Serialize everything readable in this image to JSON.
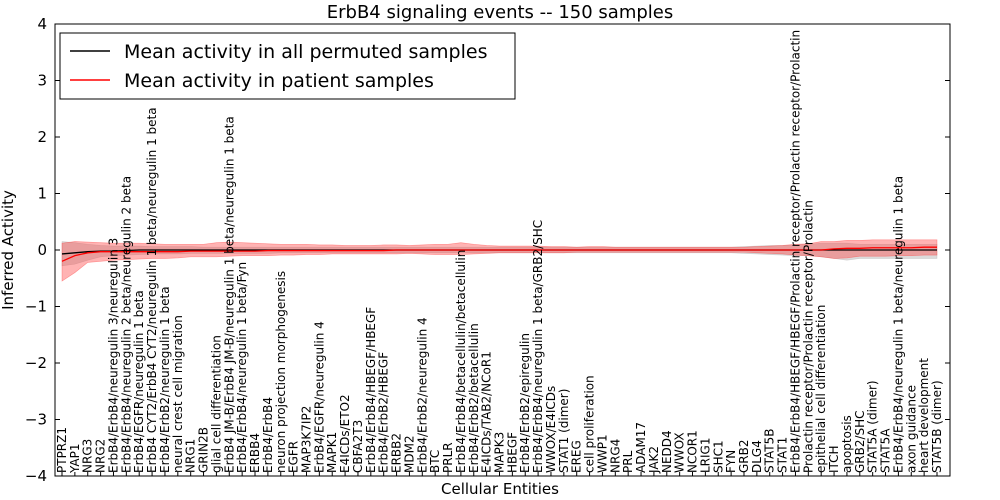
{
  "chart_data": {
    "type": "line",
    "title": "ErbB4 signaling events -- 150 samples",
    "xlabel": "Cellular Entities",
    "ylabel": "Inferred Activity",
    "ylim": [
      -4,
      4
    ],
    "yticks": [
      -4,
      -3,
      -2,
      -1,
      0,
      1,
      2,
      3,
      4
    ],
    "ytick_labels": [
      "−4",
      "−3",
      "−2",
      "−1",
      "0",
      "1",
      "2",
      "3",
      "4"
    ],
    "grid": false,
    "legend_position": "top-left",
    "categories": [
      "PTPRZ1",
      "YAP1",
      "NRG3",
      "NRG2",
      "ErbB4/ErbB4/neuregulin 3/neuregulin 3",
      "ErbB4/ErbB4/neuregulin 2 beta/neuregulin 2 beta",
      "ErbB4/EGFR/neuregulin 1 beta",
      "ErbB4 CYT2/ErbB4 CYT2/neuregulin 1 beta/neuregulin 1 beta",
      "ErbB4/ErbB2/neuregulin 1 beta",
      "neural crest cell migration",
      "NRG1",
      "GRIN2B",
      "glial cell differentiation",
      "ErbB4 JM-B/ErbB4 JM-B/neuregulin 1 beta/neuregulin 1 beta",
      "ErbB4/ErbB4/neuregulin 1 beta/Fyn",
      "ERBB4",
      "ErbB4/ErbB4",
      "neuron projection morphogenesis",
      "EGFR",
      "MAP3K7IP2",
      "ErbB4/EGFR/neuregulin 4",
      "MAPK1",
      "E4ICDs/ETO2",
      "CBFA2T3",
      "ErbB4/ErbB4/HBEGF/HBEGF",
      "ErbB4/ErbB2/HBEGF",
      "ERBB2",
      "MDM2",
      "ErbB4/ErbB2/neuregulin 4",
      "BTC",
      "PRLR",
      "ErbB4/ErbB4/betacellulin/betacellulin",
      "ErbB4/ErbB2/betacellulin",
      "E4ICDs/TAB2/NCoR1",
      "MAPK3",
      "HBEGF",
      "ErbB4/ErbB2/epiregulin",
      "ErbB4/ErbB4/neuregulin 1 beta/GRB2/SHC",
      "WWOX/E4ICDs",
      "STAT1 (dimer)",
      "EREG",
      "cell proliferation",
      "WWP1",
      "NRG4",
      "PRL",
      "ADAM17",
      "JAK2",
      "NEDD4",
      "WWOX",
      "NCOR1",
      "LRIG1",
      "SHC1",
      "FYN",
      "GRB2",
      "DLG4",
      "STAT5B",
      "STAT1",
      "ErbB4/ErbB4/HBEGF/HBEGF/Prolactin receptor/Prolactin receptor/Prolactin",
      "Prolactin receptor/Prolactin receptor/Prolactin",
      "epithelial cell differentiation",
      "ITCH",
      "apoptosis",
      "GRB2/SHC",
      "STAT5A (dimer)",
      "STAT5A",
      "ErbB4/ErbB4/neuregulin 1 beta/neuregulin 1 beta",
      "axon guidance",
      "heart development",
      "STAT5B (dimer)"
    ],
    "series": [
      {
        "name": "Mean activity in all permuted samples",
        "color": "#000000",
        "values": [
          -0.07,
          -0.05,
          -0.03,
          -0.02,
          -0.02,
          -0.01,
          0,
          0,
          0,
          0,
          0,
          0,
          0,
          0,
          0,
          0,
          0,
          0,
          0,
          0,
          0,
          0,
          0,
          0,
          0,
          0,
          0,
          0,
          0,
          0,
          0,
          0,
          0,
          0,
          0,
          0,
          0,
          0,
          0,
          0,
          0,
          0,
          0,
          0,
          0,
          0,
          0,
          0,
          0,
          0,
          0,
          0,
          0,
          0,
          0,
          0,
          0,
          0,
          0,
          0,
          0,
          0,
          0,
          0,
          0,
          0,
          0,
          0,
          0
        ],
        "band_upper": [
          0.15,
          0.13,
          0.1,
          0.08,
          0.07,
          0.07,
          0.07,
          0.06,
          0.06,
          0.06,
          0.06,
          0.05,
          0.05,
          0.05,
          0.05,
          0.05,
          0.05,
          0.05,
          0.05,
          0.05,
          0.05,
          0.05,
          0.05,
          0.05,
          0.05,
          0.05,
          0.05,
          0.05,
          0.05,
          0.05,
          0.05,
          0.05,
          0.05,
          0.05,
          0.05,
          0.05,
          0.05,
          0.05,
          0.05,
          0.05,
          0.05,
          0.05,
          0.05,
          0.05,
          0.05,
          0.05,
          0.05,
          0.05,
          0.05,
          0.05,
          0.05,
          0.05,
          0.05,
          0.06,
          0.07,
          0.08,
          0.08,
          0.09,
          0.1,
          0.12,
          0.12,
          0.12,
          0.1,
          0.1,
          0.1,
          0.1,
          0.1,
          0.1,
          0.1
        ],
        "band_lower": [
          -0.28,
          -0.25,
          -0.18,
          -0.12,
          -0.1,
          -0.09,
          -0.08,
          -0.07,
          -0.07,
          -0.07,
          -0.06,
          -0.06,
          -0.06,
          -0.06,
          -0.06,
          -0.06,
          -0.06,
          -0.05,
          -0.05,
          -0.05,
          -0.05,
          -0.05,
          -0.05,
          -0.05,
          -0.05,
          -0.05,
          -0.05,
          -0.05,
          -0.05,
          -0.05,
          -0.05,
          -0.05,
          -0.05,
          -0.05,
          -0.05,
          -0.05,
          -0.05,
          -0.05,
          -0.05,
          -0.05,
          -0.05,
          -0.05,
          -0.05,
          -0.05,
          -0.05,
          -0.05,
          -0.05,
          -0.05,
          -0.05,
          -0.05,
          -0.05,
          -0.05,
          -0.05,
          -0.06,
          -0.07,
          -0.08,
          -0.09,
          -0.1,
          -0.1,
          -0.12,
          -0.15,
          -0.18,
          -0.15,
          -0.15,
          -0.15,
          -0.15,
          -0.15,
          -0.15,
          -0.15
        ]
      },
      {
        "name": "Mean activity in patient samples",
        "color": "#ff0000",
        "values": [
          -0.2,
          -0.1,
          -0.05,
          -0.03,
          -0.03,
          -0.03,
          -0.03,
          -0.03,
          -0.03,
          -0.03,
          -0.02,
          -0.02,
          -0.02,
          -0.02,
          -0.02,
          -0.02,
          -0.01,
          -0.01,
          -0.01,
          -0.01,
          -0.01,
          -0.01,
          -0.01,
          -0.01,
          -0.01,
          -0.01,
          0,
          0,
          0,
          0,
          0,
          0,
          0,
          0,
          0,
          0,
          0,
          0,
          0,
          0,
          0,
          0,
          0,
          0,
          0,
          0,
          0,
          0,
          0,
          0,
          0,
          0,
          0,
          0,
          0,
          0,
          0,
          0,
          0,
          0,
          0.02,
          0.03,
          0.03,
          0.04,
          0.04,
          0.04,
          0.04,
          0.05,
          0.05
        ],
        "band_upper": [
          0.12,
          0.15,
          0.14,
          0.13,
          0.12,
          0.12,
          0.12,
          0.11,
          0.1,
          0.1,
          0.1,
          0.1,
          0.13,
          0.14,
          0.13,
          0.12,
          0.11,
          0.1,
          0.1,
          0.1,
          0.09,
          0.09,
          0.08,
          0.08,
          0.08,
          0.09,
          0.09,
          0.08,
          0.09,
          0.1,
          0.1,
          0.13,
          0.1,
          0.08,
          0.07,
          0.07,
          0.07,
          0.07,
          0.06,
          0.06,
          0.05,
          0.06,
          0.06,
          0.05,
          0.05,
          0.05,
          0.05,
          0.05,
          0.05,
          0.05,
          0.05,
          0.05,
          0.05,
          0.05,
          0.06,
          0.07,
          0.08,
          0.1,
          0.11,
          0.15,
          0.15,
          0.17,
          0.17,
          0.18,
          0.18,
          0.18,
          0.18,
          0.18,
          0.18
        ],
        "band_lower": [
          -0.55,
          -0.4,
          -0.22,
          -0.2,
          -0.18,
          -0.17,
          -0.16,
          -0.15,
          -0.15,
          -0.14,
          -0.12,
          -0.12,
          -0.12,
          -0.11,
          -0.1,
          -0.1,
          -0.1,
          -0.09,
          -0.09,
          -0.08,
          -0.08,
          -0.07,
          -0.07,
          -0.07,
          -0.07,
          -0.07,
          -0.07,
          -0.06,
          -0.07,
          -0.08,
          -0.08,
          -0.08,
          -0.07,
          -0.06,
          -0.05,
          -0.05,
          -0.05,
          -0.05,
          -0.05,
          -0.05,
          -0.04,
          -0.04,
          -0.04,
          -0.04,
          -0.04,
          -0.04,
          -0.04,
          -0.04,
          -0.04,
          -0.04,
          -0.04,
          -0.04,
          -0.04,
          -0.04,
          -0.05,
          -0.06,
          -0.07,
          -0.09,
          -0.1,
          -0.12,
          -0.15,
          -0.14,
          -0.11,
          -0.11,
          -0.11,
          -0.1,
          -0.1,
          -0.09,
          -0.09
        ]
      }
    ],
    "band_colors": {
      "permuted": "#b0b0b0",
      "patient": "#ff4040"
    }
  }
}
